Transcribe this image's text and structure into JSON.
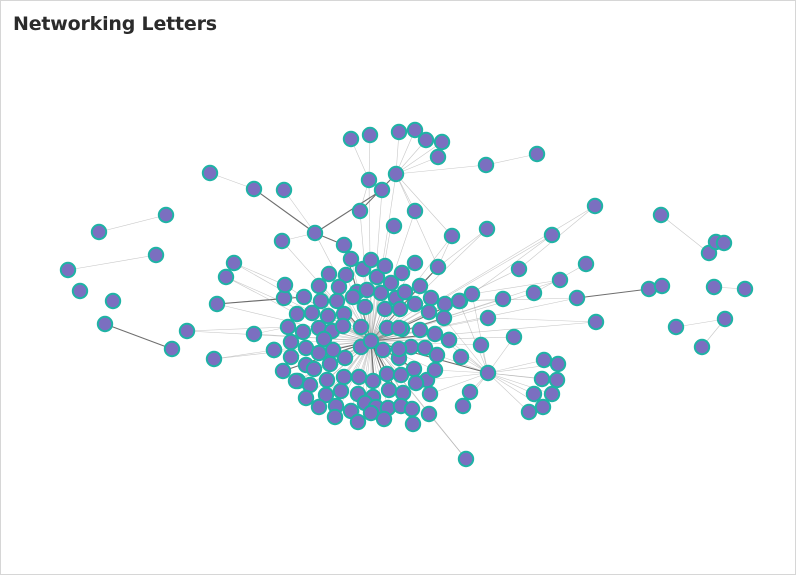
{
  "title": "Networking Letters",
  "colors": {
    "node_fill": "#7b6fc0",
    "node_stroke": "#1fb3a5",
    "edge": "#9a9a9a",
    "edge_strong": "#555555",
    "background": "#ffffff"
  },
  "graph": {
    "node_count": 175,
    "edges_drawn_from_hubs": [
      "center",
      "hub-east"
    ]
  }
}
